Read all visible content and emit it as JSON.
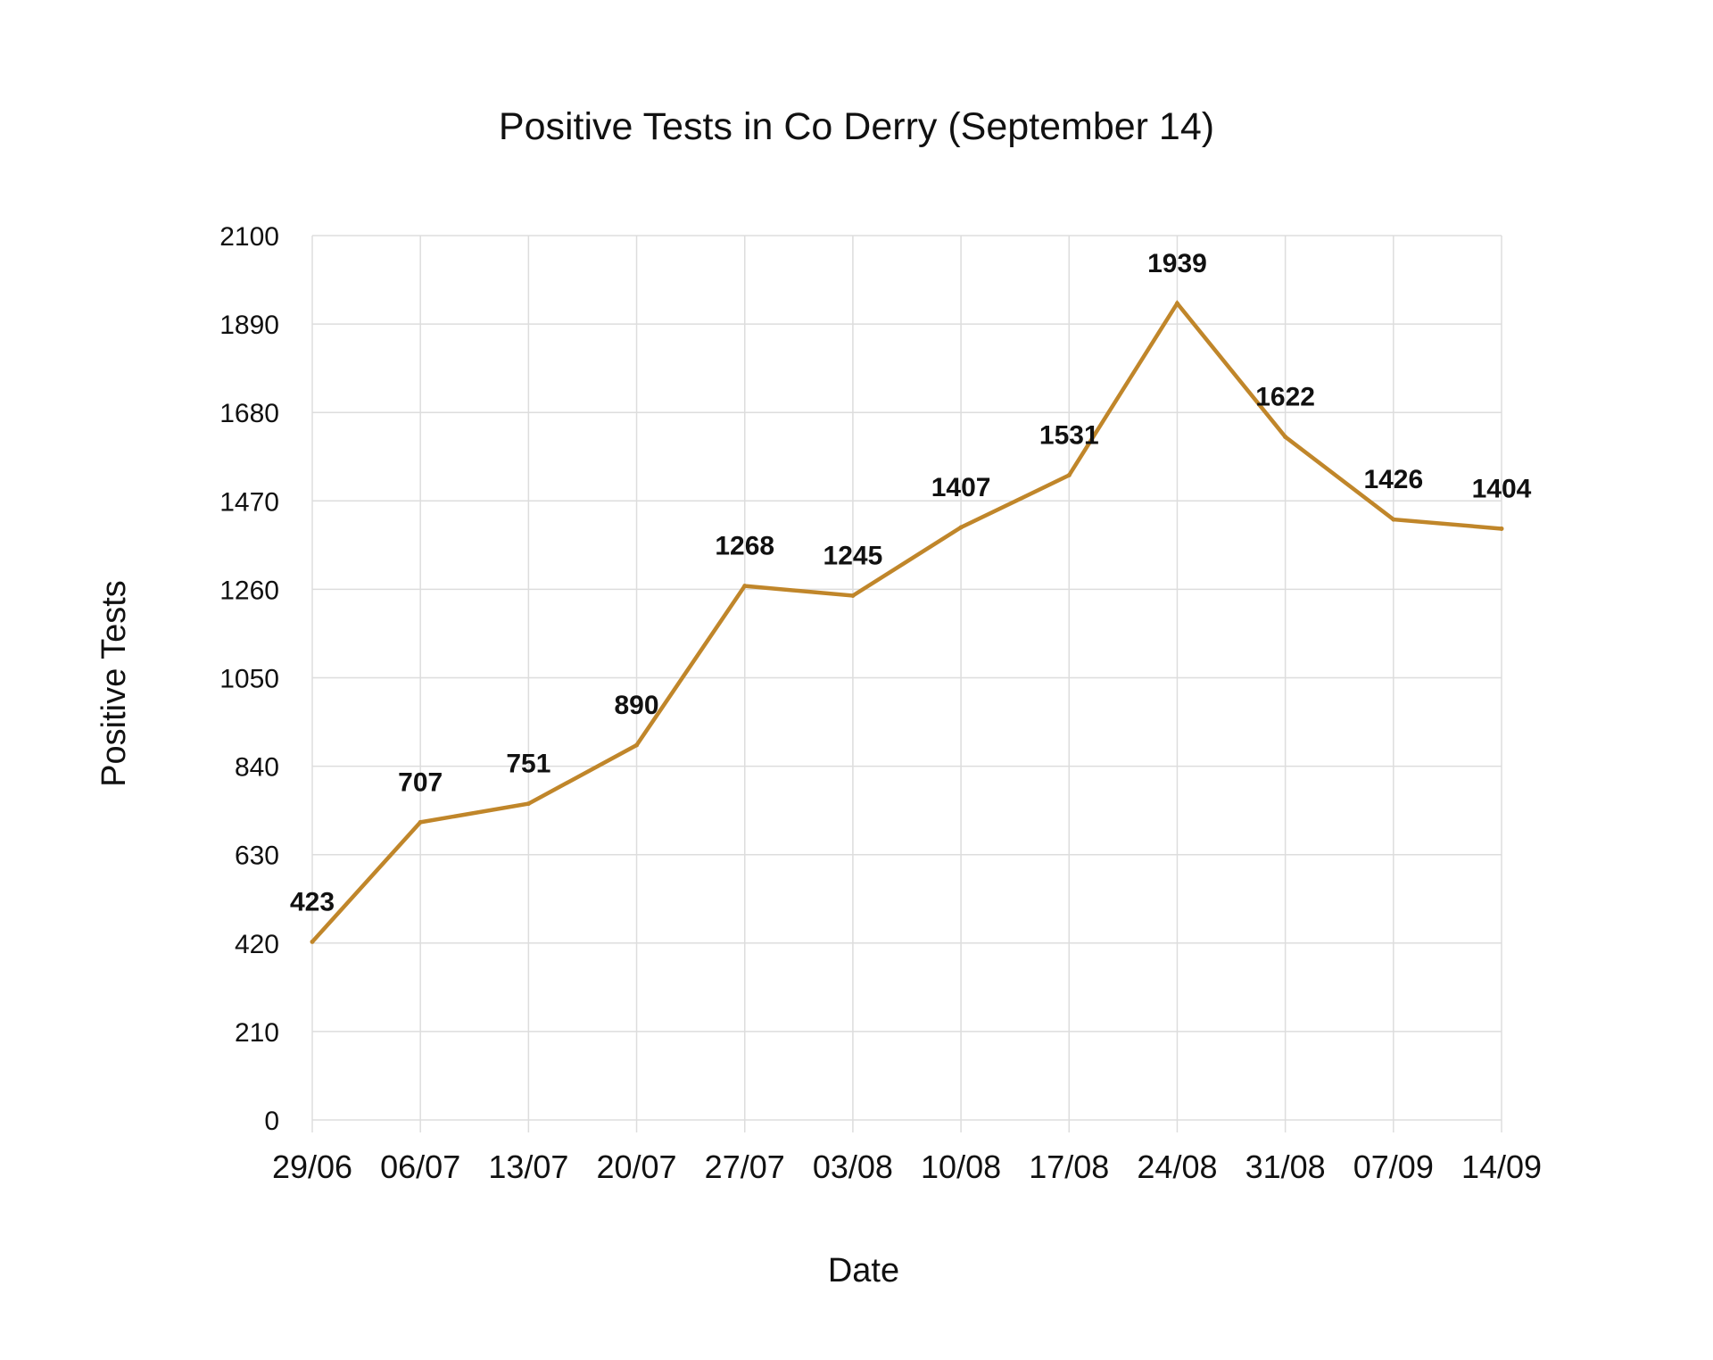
{
  "chart_data": {
    "type": "line",
    "title": "Positive Tests in Co Derry (September 14)",
    "xlabel": "Date",
    "ylabel": "Positive Tests",
    "categories": [
      "29/06",
      "06/07",
      "13/07",
      "20/07",
      "27/07",
      "03/08",
      "10/08",
      "17/08",
      "24/08",
      "31/08",
      "07/09",
      "14/09"
    ],
    "series": [
      {
        "values": [
          423,
          707,
          751,
          890,
          1268,
          1245,
          1407,
          1531,
          1939,
          1622,
          1426,
          1404
        ]
      }
    ],
    "ylim": [
      0,
      2100
    ],
    "yticks": [
      0,
      210,
      420,
      630,
      840,
      1050,
      1260,
      1470,
      1680,
      1890,
      2100
    ],
    "grid": true,
    "data_labels": true,
    "line_color": "#C0862A"
  }
}
